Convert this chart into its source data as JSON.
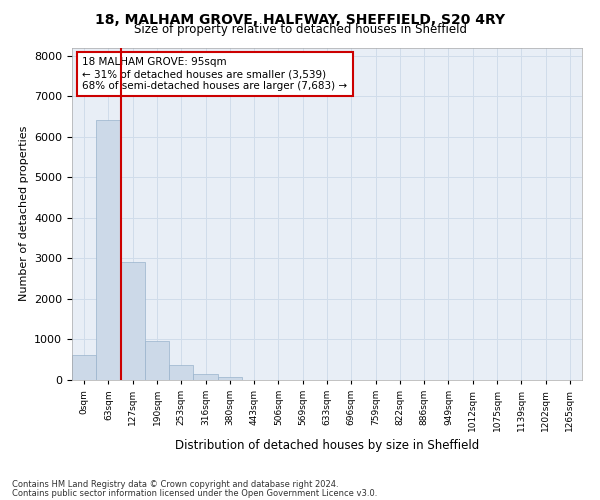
{
  "title_line1": "18, MALHAM GROVE, HALFWAY, SHEFFIELD, S20 4RY",
  "title_line2": "Size of property relative to detached houses in Sheffield",
  "xlabel": "Distribution of detached houses by size in Sheffield",
  "ylabel": "Number of detached properties",
  "bar_color": "#ccd9e8",
  "bar_edge_color": "#99b3cc",
  "grid_color": "#d0dcea",
  "background_color": "#e8eef6",
  "vline_color": "#cc0000",
  "vline_x": 1.5,
  "annotation_text": "18 MALHAM GROVE: 95sqm\n← 31% of detached houses are smaller (3,539)\n68% of semi-detached houses are larger (7,683) →",
  "annotation_box_color": "#ffffff",
  "annotation_box_edgecolor": "#cc0000",
  "categories": [
    "0sqm",
    "63sqm",
    "127sqm",
    "190sqm",
    "253sqm",
    "316sqm",
    "380sqm",
    "443sqm",
    "506sqm",
    "569sqm",
    "633sqm",
    "696sqm",
    "759sqm",
    "822sqm",
    "886sqm",
    "949sqm",
    "1012sqm",
    "1075sqm",
    "1139sqm",
    "1202sqm",
    "1265sqm"
  ],
  "values": [
    620,
    6400,
    2920,
    960,
    360,
    145,
    70,
    0,
    0,
    0,
    0,
    0,
    0,
    0,
    0,
    0,
    0,
    0,
    0,
    0,
    0
  ],
  "ylim": [
    0,
    8200
  ],
  "yticks": [
    0,
    1000,
    2000,
    3000,
    4000,
    5000,
    6000,
    7000,
    8000
  ],
  "footer_line1": "Contains HM Land Registry data © Crown copyright and database right 2024.",
  "footer_line2": "Contains public sector information licensed under the Open Government Licence v3.0."
}
